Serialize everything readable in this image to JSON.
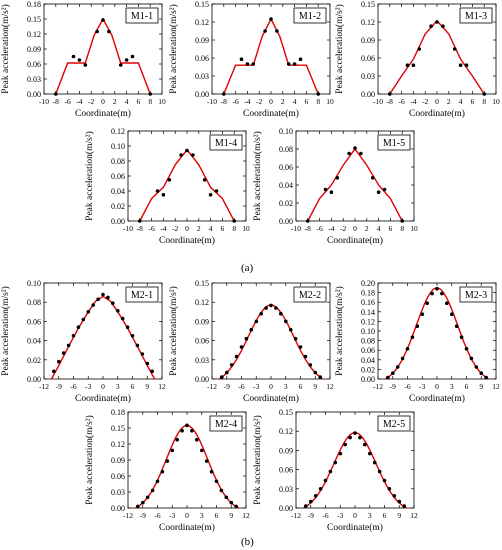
{
  "figure": {
    "part_labels": [
      "(a)",
      "(b)"
    ],
    "axis_labels": {
      "ylabel": "Peak acceleration(m/s²)",
      "xlabel": "Coordinate(m)"
    }
  },
  "chart_data": [
    {
      "type": "scatter",
      "title": "M1-1",
      "group": "a",
      "xlabel": "Coordinate(m)",
      "ylabel": "Peak acceleration(m/s²)",
      "xlim": [
        -10,
        10
      ],
      "ylim": [
        0,
        0.18
      ],
      "xticks": [
        -10,
        -8,
        -6,
        -4,
        -2,
        0,
        2,
        4,
        6,
        8,
        10
      ],
      "yticks": [
        0.0,
        0.03,
        0.06,
        0.09,
        0.12,
        0.15,
        0.18
      ],
      "points": [
        [
          -8,
          0.0
        ],
        [
          -5,
          0.075
        ],
        [
          -4,
          0.068
        ],
        [
          -3,
          0.058
        ],
        [
          -1,
          0.125
        ],
        [
          0,
          0.148
        ],
        [
          1,
          0.125
        ],
        [
          3,
          0.058
        ],
        [
          4,
          0.068
        ],
        [
          5,
          0.075
        ],
        [
          8,
          0.0
        ]
      ],
      "fit": [
        [
          -8,
          0.0
        ],
        [
          -6,
          0.062
        ],
        [
          -3,
          0.062
        ],
        [
          -1.5,
          0.118
        ],
        [
          0,
          0.15
        ],
        [
          1.5,
          0.118
        ],
        [
          3,
          0.062
        ],
        [
          6,
          0.062
        ],
        [
          8,
          0.0
        ]
      ]
    },
    {
      "type": "scatter",
      "title": "M1-2",
      "group": "a",
      "xlabel": "Coordinate(m)",
      "ylabel": "Peak acceleration(m/s²)",
      "xlim": [
        -10,
        10
      ],
      "ylim": [
        0,
        0.15
      ],
      "xticks": [
        -10,
        -8,
        -6,
        -4,
        -2,
        0,
        2,
        4,
        6,
        8,
        10
      ],
      "yticks": [
        0.0,
        0.03,
        0.06,
        0.09,
        0.12,
        0.15
      ],
      "points": [
        [
          -8,
          0.0
        ],
        [
          -5,
          0.058
        ],
        [
          -4,
          0.05
        ],
        [
          -3,
          0.05
        ],
        [
          -1,
          0.105
        ],
        [
          0,
          0.125
        ],
        [
          1,
          0.105
        ],
        [
          3,
          0.05
        ],
        [
          4,
          0.05
        ],
        [
          5,
          0.058
        ],
        [
          8,
          0.0
        ]
      ],
      "fit": [
        [
          -8,
          0.0
        ],
        [
          -6,
          0.048
        ],
        [
          -3,
          0.048
        ],
        [
          -1.5,
          0.096
        ],
        [
          0,
          0.125
        ],
        [
          1.5,
          0.096
        ],
        [
          3,
          0.048
        ],
        [
          6,
          0.048
        ],
        [
          8,
          0.0
        ]
      ]
    },
    {
      "type": "scatter",
      "title": "M1-3",
      "group": "a",
      "xlabel": "Coordinate(m)",
      "ylabel": "Peak acceleration(m/s²)",
      "xlim": [
        -10,
        10
      ],
      "ylim": [
        0,
        0.15
      ],
      "xticks": [
        -10,
        -8,
        -6,
        -4,
        -2,
        0,
        2,
        4,
        6,
        8,
        10
      ],
      "yticks": [
        0.0,
        0.03,
        0.06,
        0.09,
        0.12,
        0.15
      ],
      "points": [
        [
          -8,
          0.0
        ],
        [
          -5,
          0.048
        ],
        [
          -4,
          0.048
        ],
        [
          -3,
          0.075
        ],
        [
          -1,
          0.113
        ],
        [
          0,
          0.12
        ],
        [
          1,
          0.113
        ],
        [
          3,
          0.075
        ],
        [
          4,
          0.048
        ],
        [
          5,
          0.048
        ],
        [
          8,
          0.0
        ]
      ],
      "fit": [
        [
          -8,
          0.0
        ],
        [
          -6,
          0.03
        ],
        [
          -4,
          0.058
        ],
        [
          -2,
          0.1
        ],
        [
          0,
          0.122
        ],
        [
          2,
          0.1
        ],
        [
          4,
          0.058
        ],
        [
          6,
          0.03
        ],
        [
          8,
          0.0
        ]
      ]
    },
    {
      "type": "scatter",
      "title": "M1-4",
      "group": "a",
      "xlabel": "Coordinate(m)",
      "ylabel": "Peak acceleration(m/s²)",
      "xlim": [
        -10,
        10
      ],
      "ylim": [
        0,
        0.12
      ],
      "xticks": [
        -10,
        -8,
        -6,
        -4,
        -2,
        0,
        2,
        4,
        6,
        8,
        10
      ],
      "yticks": [
        0.0,
        0.02,
        0.04,
        0.06,
        0.08,
        0.1,
        0.12
      ],
      "points": [
        [
          -8,
          0.0
        ],
        [
          -5,
          0.04
        ],
        [
          -4,
          0.035
        ],
        [
          -3,
          0.055
        ],
        [
          -1,
          0.088
        ],
        [
          0,
          0.094
        ],
        [
          1,
          0.088
        ],
        [
          3,
          0.055
        ],
        [
          4,
          0.035
        ],
        [
          5,
          0.04
        ],
        [
          8,
          0.0
        ]
      ],
      "fit": [
        [
          -8,
          0.0
        ],
        [
          -6,
          0.03
        ],
        [
          -4,
          0.045
        ],
        [
          -2,
          0.075
        ],
        [
          0,
          0.095
        ],
        [
          2,
          0.075
        ],
        [
          4,
          0.045
        ],
        [
          6,
          0.03
        ],
        [
          8,
          0.0
        ]
      ]
    },
    {
      "type": "scatter",
      "title": "M1-5",
      "group": "a",
      "xlabel": "Coordinate(m)",
      "ylabel": "Peak acceleration(m/s²)",
      "xlim": [
        -10,
        10
      ],
      "ylim": [
        0,
        0.1
      ],
      "xticks": [
        -10,
        -8,
        -6,
        -4,
        -2,
        0,
        2,
        4,
        6,
        8,
        10
      ],
      "yticks": [
        0.0,
        0.02,
        0.04,
        0.06,
        0.08,
        0.1
      ],
      "points": [
        [
          -8,
          0.0
        ],
        [
          -5,
          0.035
        ],
        [
          -4,
          0.032
        ],
        [
          -3,
          0.048
        ],
        [
          -1,
          0.075
        ],
        [
          0,
          0.081
        ],
        [
          1,
          0.075
        ],
        [
          3,
          0.048
        ],
        [
          4,
          0.032
        ],
        [
          5,
          0.035
        ],
        [
          8,
          0.0
        ]
      ],
      "fit": [
        [
          -8,
          0.0
        ],
        [
          -6,
          0.025
        ],
        [
          -4,
          0.04
        ],
        [
          -2,
          0.062
        ],
        [
          0,
          0.08
        ],
        [
          2,
          0.062
        ],
        [
          4,
          0.04
        ],
        [
          6,
          0.025
        ],
        [
          8,
          0.0
        ]
      ]
    },
    {
      "type": "scatter",
      "title": "M2-1",
      "group": "b",
      "xlabel": "Coordinate(m)",
      "ylabel": "Peak acceleration(m/s²)",
      "xlim": [
        -12,
        12
      ],
      "ylim": [
        0,
        0.1
      ],
      "xticks": [
        -12,
        -9,
        -6,
        -3,
        0,
        3,
        6,
        9,
        12
      ],
      "yticks": [
        0.0,
        0.02,
        0.04,
        0.06,
        0.08,
        0.1
      ],
      "points": [
        [
          -10,
          0.008
        ],
        [
          -9,
          0.018
        ],
        [
          -8,
          0.027
        ],
        [
          -7,
          0.035
        ],
        [
          -6,
          0.045
        ],
        [
          -5,
          0.054
        ],
        [
          -4,
          0.062
        ],
        [
          -3,
          0.07
        ],
        [
          -2,
          0.077
        ],
        [
          -1,
          0.083
        ],
        [
          0,
          0.088
        ],
        [
          1,
          0.085
        ],
        [
          2,
          0.079
        ],
        [
          3,
          0.071
        ],
        [
          4,
          0.063
        ],
        [
          5,
          0.054
        ],
        [
          6,
          0.045
        ],
        [
          7,
          0.035
        ],
        [
          8,
          0.026
        ],
        [
          9,
          0.016
        ],
        [
          10,
          0.008
        ]
      ],
      "fit": [
        [
          -10.5,
          0.0
        ],
        [
          -9,
          0.014
        ],
        [
          -7,
          0.034
        ],
        [
          -5,
          0.053
        ],
        [
          -3,
          0.07
        ],
        [
          -1.5,
          0.081
        ],
        [
          0,
          0.086
        ],
        [
          1.5,
          0.081
        ],
        [
          3,
          0.07
        ],
        [
          5,
          0.053
        ],
        [
          7,
          0.034
        ],
        [
          9,
          0.014
        ],
        [
          10.5,
          0.0
        ]
      ]
    },
    {
      "type": "scatter",
      "title": "M2-2",
      "group": "b",
      "xlabel": "Coordinate(m)",
      "ylabel": "Peak acceleration(m/s²)",
      "xlim": [
        -12,
        12
      ],
      "ylim": [
        0,
        0.15
      ],
      "xticks": [
        -12,
        -9,
        -6,
        -3,
        0,
        3,
        6,
        9,
        12
      ],
      "yticks": [
        0.0,
        0.03,
        0.06,
        0.09,
        0.12,
        0.15
      ],
      "points": [
        [
          -10,
          0.003
        ],
        [
          -9,
          0.01
        ],
        [
          -8,
          0.022
        ],
        [
          -7,
          0.035
        ],
        [
          -6,
          0.05
        ],
        [
          -5,
          0.063
        ],
        [
          -4,
          0.077
        ],
        [
          -3,
          0.09
        ],
        [
          -2,
          0.102
        ],
        [
          -1,
          0.111
        ],
        [
          0,
          0.115
        ],
        [
          1,
          0.111
        ],
        [
          2,
          0.102
        ],
        [
          3,
          0.09
        ],
        [
          4,
          0.077
        ],
        [
          5,
          0.063
        ],
        [
          6,
          0.05
        ],
        [
          7,
          0.035
        ],
        [
          8,
          0.022
        ],
        [
          9,
          0.01
        ],
        [
          10,
          0.003
        ]
      ],
      "fit": "gauss:0.116:4.6:10.5"
    },
    {
      "type": "scatter",
      "title": "M2-3",
      "group": "b",
      "xlabel": "Coordinate(m)",
      "ylabel": "Peak acceleration(m/s²)",
      "xlim": [
        -12,
        12
      ],
      "ylim": [
        0,
        0.2
      ],
      "xticks": [
        -12,
        -9,
        -6,
        -3,
        0,
        3,
        6,
        9,
        12
      ],
      "yticks": [
        0.0,
        0.02,
        0.04,
        0.06,
        0.08,
        0.1,
        0.12,
        0.14,
        0.16,
        0.18,
        0.2
      ],
      "points": [
        [
          -10,
          0.003
        ],
        [
          -9,
          0.012
        ],
        [
          -8,
          0.025
        ],
        [
          -7,
          0.043
        ],
        [
          -6,
          0.063
        ],
        [
          -5,
          0.087
        ],
        [
          -4,
          0.11
        ],
        [
          -3,
          0.135
        ],
        [
          -2,
          0.158
        ],
        [
          -1,
          0.178
        ],
        [
          0,
          0.188
        ],
        [
          1,
          0.178
        ],
        [
          2,
          0.158
        ],
        [
          3,
          0.135
        ],
        [
          4,
          0.11
        ],
        [
          5,
          0.087
        ],
        [
          6,
          0.063
        ],
        [
          7,
          0.043
        ],
        [
          8,
          0.025
        ],
        [
          9,
          0.012
        ],
        [
          10,
          0.003
        ]
      ],
      "fit": "gauss:0.19:4.2:10.5"
    },
    {
      "type": "scatter",
      "title": "M2-4",
      "group": "b",
      "xlabel": "Coordinate(m)",
      "ylabel": "Peak acceleration(m/s²)",
      "xlim": [
        -12,
        12
      ],
      "ylim": [
        0,
        0.18
      ],
      "xticks": [
        -12,
        -9,
        -6,
        -3,
        0,
        3,
        6,
        9,
        12
      ],
      "yticks": [
        0.0,
        0.03,
        0.06,
        0.09,
        0.12,
        0.15,
        0.18
      ],
      "points": [
        [
          -10,
          0.003
        ],
        [
          -9,
          0.01
        ],
        [
          -8,
          0.02
        ],
        [
          -7,
          0.033
        ],
        [
          -6,
          0.05
        ],
        [
          -5,
          0.068
        ],
        [
          -4,
          0.088
        ],
        [
          -3,
          0.108
        ],
        [
          -2,
          0.128
        ],
        [
          -1,
          0.145
        ],
        [
          0,
          0.155
        ],
        [
          1,
          0.145
        ],
        [
          2,
          0.128
        ],
        [
          3,
          0.108
        ],
        [
          4,
          0.088
        ],
        [
          5,
          0.068
        ],
        [
          6,
          0.05
        ],
        [
          7,
          0.033
        ],
        [
          8,
          0.02
        ],
        [
          9,
          0.01
        ],
        [
          10,
          0.003
        ]
      ],
      "fit": "gauss:0.155:4.2:10.5"
    },
    {
      "type": "scatter",
      "title": "M2-5",
      "group": "b",
      "xlabel": "Coordinate(m)",
      "ylabel": "Peak acceleration(m/s²)",
      "xlim": [
        -12,
        12
      ],
      "ylim": [
        0,
        0.15
      ],
      "xticks": [
        -12,
        -9,
        -6,
        -3,
        0,
        3,
        6,
        9,
        12
      ],
      "yticks": [
        0.0,
        0.03,
        0.06,
        0.09,
        0.12,
        0.15
      ],
      "points": [
        [
          -10,
          0.003
        ],
        [
          -9,
          0.01
        ],
        [
          -8,
          0.019
        ],
        [
          -7,
          0.03
        ],
        [
          -6,
          0.043
        ],
        [
          -5,
          0.057
        ],
        [
          -4,
          0.071
        ],
        [
          -3,
          0.085
        ],
        [
          -2,
          0.099
        ],
        [
          -1,
          0.11
        ],
        [
          0,
          0.117
        ],
        [
          1,
          0.11
        ],
        [
          2,
          0.099
        ],
        [
          3,
          0.085
        ],
        [
          4,
          0.071
        ],
        [
          5,
          0.057
        ],
        [
          6,
          0.043
        ],
        [
          7,
          0.03
        ],
        [
          8,
          0.019
        ],
        [
          9,
          0.01
        ],
        [
          10,
          0.003
        ]
      ],
      "fit": "gauss:0.118:4.3:10.5"
    }
  ]
}
